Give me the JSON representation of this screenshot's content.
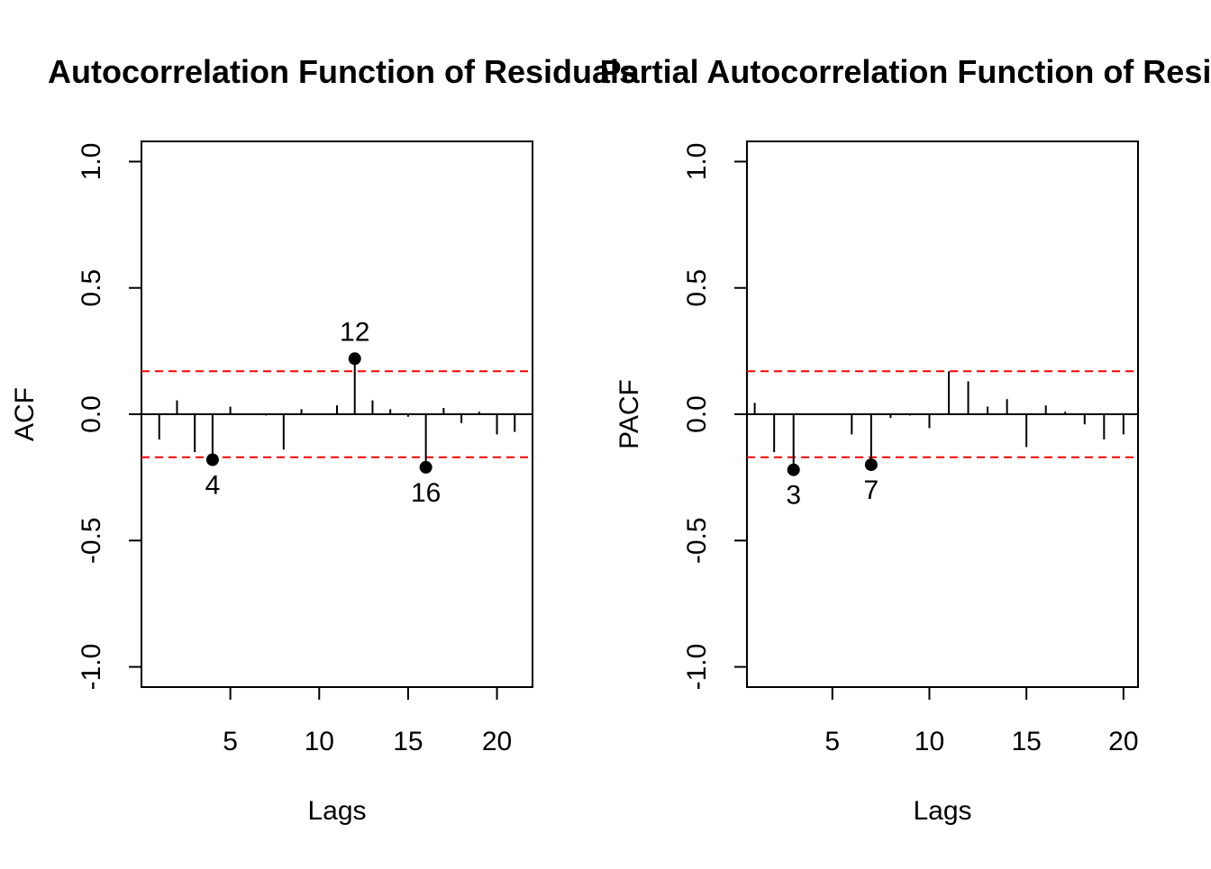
{
  "chart_data": [
    {
      "type": "bar",
      "title": "Autocorrelation Function of Residuals",
      "xlabel": "Lags",
      "ylabel": "ACF",
      "xlim": [
        0,
        22
      ],
      "ylim": [
        -1.08,
        1.08
      ],
      "x_ticks": [
        5,
        10,
        15,
        20
      ],
      "y_ticks": [
        -1.0,
        -0.5,
        0.0,
        0.5,
        1.0
      ],
      "x_tick_labels": [
        "5",
        "10",
        "15",
        "20"
      ],
      "y_tick_labels": [
        "-1.0",
        "-0.5",
        "0.0",
        "0.5",
        "1.0"
      ],
      "confidence_band": 0.17,
      "confidence_color": "#ff0000",
      "lags": [
        1,
        2,
        3,
        4,
        5,
        6,
        7,
        8,
        9,
        10,
        11,
        12,
        13,
        14,
        15,
        16,
        17,
        18,
        19,
        20,
        21
      ],
      "values": [
        -0.1,
        0.055,
        -0.15,
        -0.18,
        0.03,
        0.0,
        -0.005,
        -0.14,
        0.02,
        0.0,
        0.035,
        0.22,
        0.055,
        0.02,
        -0.01,
        -0.21,
        0.025,
        -0.035,
        0.01,
        -0.08,
        -0.07
      ],
      "highlight_lags": [
        "4",
        "12",
        "16"
      ],
      "grid": false,
      "legend": "none"
    },
    {
      "type": "bar",
      "title": "Partial Autocorrelation Function of Residuals",
      "xlabel": "Lags",
      "ylabel": "PACF",
      "xlim": [
        0.6,
        20.75
      ],
      "ylim": [
        -1.08,
        1.08
      ],
      "x_ticks": [
        5,
        10,
        15,
        20
      ],
      "y_ticks": [
        -1.0,
        -0.5,
        0.0,
        0.5,
        1.0
      ],
      "x_tick_labels": [
        "5",
        "10",
        "15",
        "20"
      ],
      "y_tick_labels": [
        "-1.0",
        "-0.5",
        "0.0",
        "0.5",
        "1.0"
      ],
      "confidence_band": 0.17,
      "confidence_color": "#ff0000",
      "lags": [
        1,
        2,
        3,
        4,
        5,
        6,
        7,
        8,
        9,
        10,
        11,
        12,
        13,
        14,
        15,
        16,
        17,
        18,
        19,
        20
      ],
      "values": [
        0.045,
        -0.15,
        -0.22,
        0.0,
        0.0,
        -0.08,
        -0.2,
        -0.015,
        -0.005,
        -0.055,
        0.17,
        0.13,
        0.03,
        0.06,
        -0.13,
        0.035,
        0.01,
        -0.04,
        -0.1,
        -0.08
      ],
      "highlight_lags": [
        "3",
        "7"
      ],
      "grid": false,
      "legend": "none"
    }
  ]
}
